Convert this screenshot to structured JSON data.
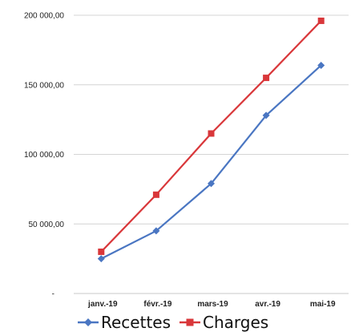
{
  "chart_data": {
    "type": "line",
    "categories": [
      "janv.-19",
      "févr.-19",
      "mars-19",
      "avr.-19",
      "mai-19"
    ],
    "series": [
      {
        "name": "Recettes",
        "values": [
          25000,
          45000,
          79000,
          128000,
          164000
        ],
        "color": "#4a76c2",
        "marker": "diamond"
      },
      {
        "name": "Charges",
        "values": [
          30000,
          71000,
          115000,
          155000,
          196000
        ],
        "color": "#d9373a",
        "marker": "square"
      }
    ],
    "ylim": [
      0,
      200000
    ],
    "yticks": [
      {
        "value": 0,
        "label": "-"
      },
      {
        "value": 50000,
        "label": "50 000,00"
      },
      {
        "value": 100000,
        "label": "100 000,00"
      },
      {
        "value": 150000,
        "label": "150 000,00"
      },
      {
        "value": 200000,
        "label": "200 000,00"
      }
    ],
    "grid": true,
    "legend_position": "bottom"
  }
}
